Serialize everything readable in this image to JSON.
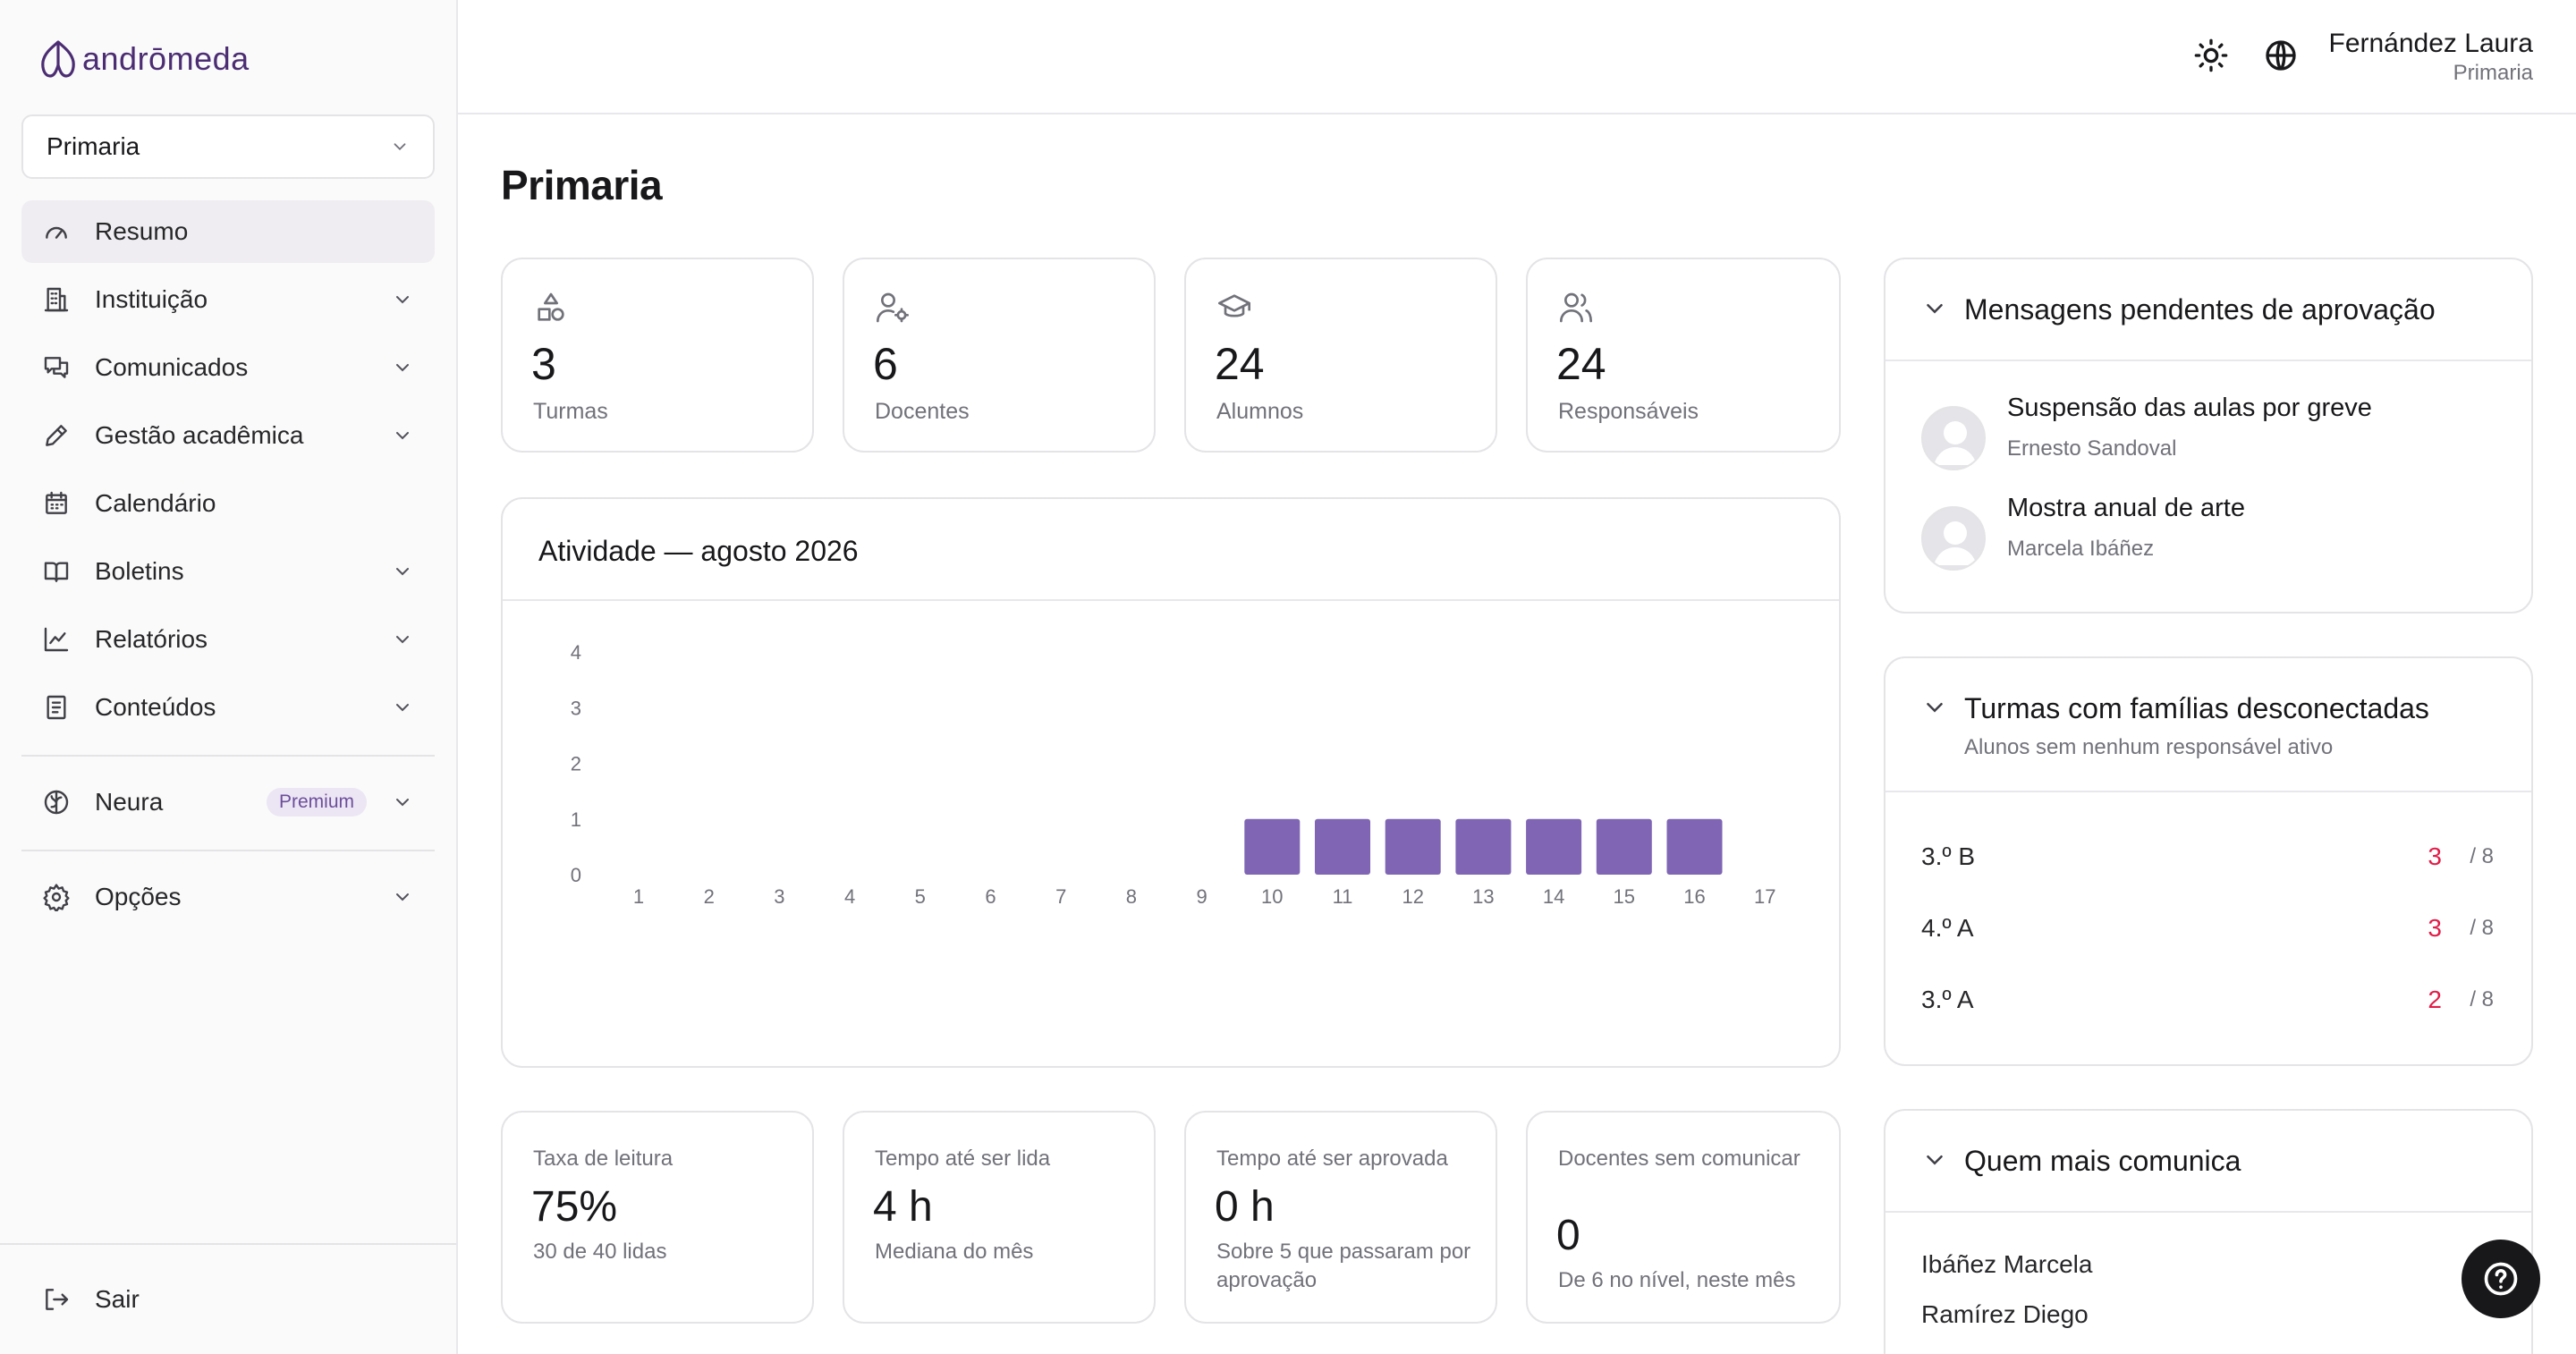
{
  "app": {
    "brand": "andrōmeda",
    "accent": "#7f65b4"
  },
  "sidebar": {
    "level_select": "Primaria",
    "items": [
      {
        "label": "Resumo",
        "icon": "gauge-icon",
        "active": true
      },
      {
        "label": "Instituição",
        "icon": "building-icon"
      },
      {
        "label": "Comunicados",
        "icon": "messages-icon"
      },
      {
        "label": "Gestão acadêmica",
        "icon": "pencil-icon"
      },
      {
        "label": "Calendário",
        "icon": "calendar-icon"
      },
      {
        "label": "Boletins",
        "icon": "book-icon"
      },
      {
        "label": "Relatórios",
        "icon": "chart-line-icon"
      },
      {
        "label": "Conteúdos",
        "icon": "document-icon"
      }
    ],
    "neura": {
      "label": "Neura",
      "badge": "Premium"
    },
    "options": {
      "label": "Opções"
    },
    "logout": {
      "label": "Sair"
    }
  },
  "topbar": {
    "user_name": "Fernández Laura",
    "user_role": "Primaria"
  },
  "page": {
    "title": "Primaria"
  },
  "stats": [
    {
      "value": "3",
      "label": "Turmas",
      "icon": "shapes-icon"
    },
    {
      "value": "6",
      "label": "Docentes",
      "icon": "user-gear-icon"
    },
    {
      "value": "24",
      "label": "Alumnos",
      "icon": "graduation-cap-icon"
    },
    {
      "value": "24",
      "label": "Responsáveis",
      "icon": "users-icon"
    }
  ],
  "activity": {
    "title": "Atividade — agosto 2026"
  },
  "chart_data": {
    "type": "bar",
    "title": "Atividade — agosto 2026",
    "categories": [
      "1",
      "2",
      "3",
      "4",
      "5",
      "6",
      "7",
      "8",
      "9",
      "10",
      "11",
      "12",
      "13",
      "14",
      "15",
      "16",
      "17"
    ],
    "values": [
      0,
      0,
      0,
      0,
      0,
      0,
      0,
      0,
      0,
      1,
      1,
      1,
      1,
      1,
      1,
      1,
      0
    ],
    "y_ticks": [
      "0",
      "1",
      "2",
      "3",
      "4"
    ],
    "ylim": [
      0,
      4
    ],
    "color": "#7f65b4",
    "grid": false
  },
  "metrics": [
    {
      "label": "Taxa de leitura",
      "value": "75%",
      "sub": "30 de 40 lidas"
    },
    {
      "label": "Tempo até ser lida",
      "value": "4 h",
      "sub": "Mediana do mês"
    },
    {
      "label": "Tempo até ser aprovada",
      "value": "0 h",
      "sub": "Sobre 5 que passaram por aprovação"
    },
    {
      "label": "Docentes sem comunicar",
      "value": "0",
      "sub": "De 6 no nível, neste mês"
    }
  ],
  "pending": {
    "title": "Mensagens pendentes de aprovação",
    "items": [
      {
        "title": "Suspensão das aulas por greve",
        "author": "Ernesto Sandoval"
      },
      {
        "title": "Mostra anual de arte",
        "author": "Marcela Ibáñez"
      }
    ]
  },
  "disconnected": {
    "title": "Turmas com famílias desconectadas",
    "subtitle": "Alunos sem nenhum responsável ativo",
    "rows": [
      {
        "class": "3.º B",
        "count": "3",
        "total": "/ 8"
      },
      {
        "class": "4.º A",
        "count": "3",
        "total": "/ 8"
      },
      {
        "class": "3.º A",
        "count": "2",
        "total": "/ 8"
      }
    ]
  },
  "communicators": {
    "title": "Quem mais comunica",
    "items": [
      {
        "name": "Ibáñez Marcela"
      },
      {
        "name": "Ramírez Diego"
      }
    ]
  }
}
